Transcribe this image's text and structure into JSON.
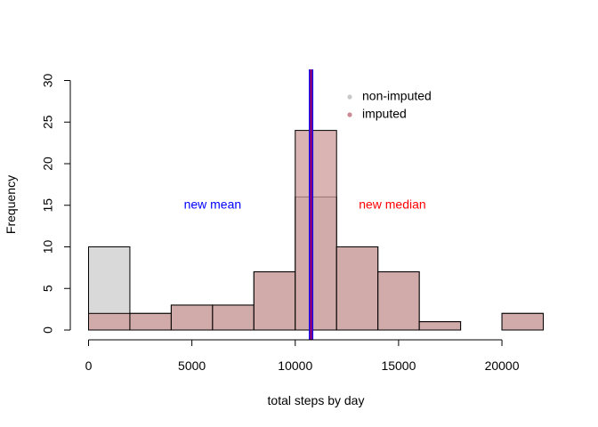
{
  "chart_data": {
    "type": "histogram",
    "xlabel": "total steps by day",
    "ylabel": "Frequency",
    "xlim": [
      0,
      22000
    ],
    "ylim": [
      0,
      30
    ],
    "bin_edges": [
      0,
      2000,
      4000,
      6000,
      8000,
      10000,
      12000,
      14000,
      16000,
      18000,
      20000,
      22000
    ],
    "x_ticks": [
      0,
      5000,
      10000,
      15000,
      20000
    ],
    "x_tick_labels": [
      "0",
      "5000",
      "10000",
      "15000",
      "20000"
    ],
    "y_ticks": [
      0,
      5,
      10,
      15,
      20,
      25,
      30
    ],
    "y_tick_labels": [
      "0",
      "5",
      "10",
      "15",
      "20",
      "25",
      "30"
    ],
    "series": [
      {
        "name": "non-imputed",
        "color": "#d9d9d9",
        "values": [
          10,
          2,
          3,
          3,
          7,
          16,
          10,
          7,
          1,
          0,
          2
        ]
      },
      {
        "name": "imputed",
        "color": "#cd9a9a",
        "opacity": 0.75,
        "values": [
          2,
          2,
          3,
          3,
          7,
          24,
          10,
          7,
          1,
          0,
          2
        ]
      }
    ],
    "reference_lines": [
      {
        "label": "new mean",
        "x": 10766,
        "color": "#0000ff"
      },
      {
        "label": "new median",
        "x": 10766,
        "color": "#ff0000"
      }
    ],
    "mean_line_color": "#8b00b0",
    "legend": {
      "position": "top-right",
      "entries": [
        {
          "label": "non-imputed",
          "color": "#c8c8c8"
        },
        {
          "label": "imputed",
          "color": "#c98a94"
        }
      ]
    },
    "annotations": [
      {
        "text": "new mean",
        "color": "#0000ff",
        "x": 6000,
        "y": 15
      },
      {
        "text": "new median",
        "color": "#ff0000",
        "x": 14700,
        "y": 15
      }
    ]
  }
}
